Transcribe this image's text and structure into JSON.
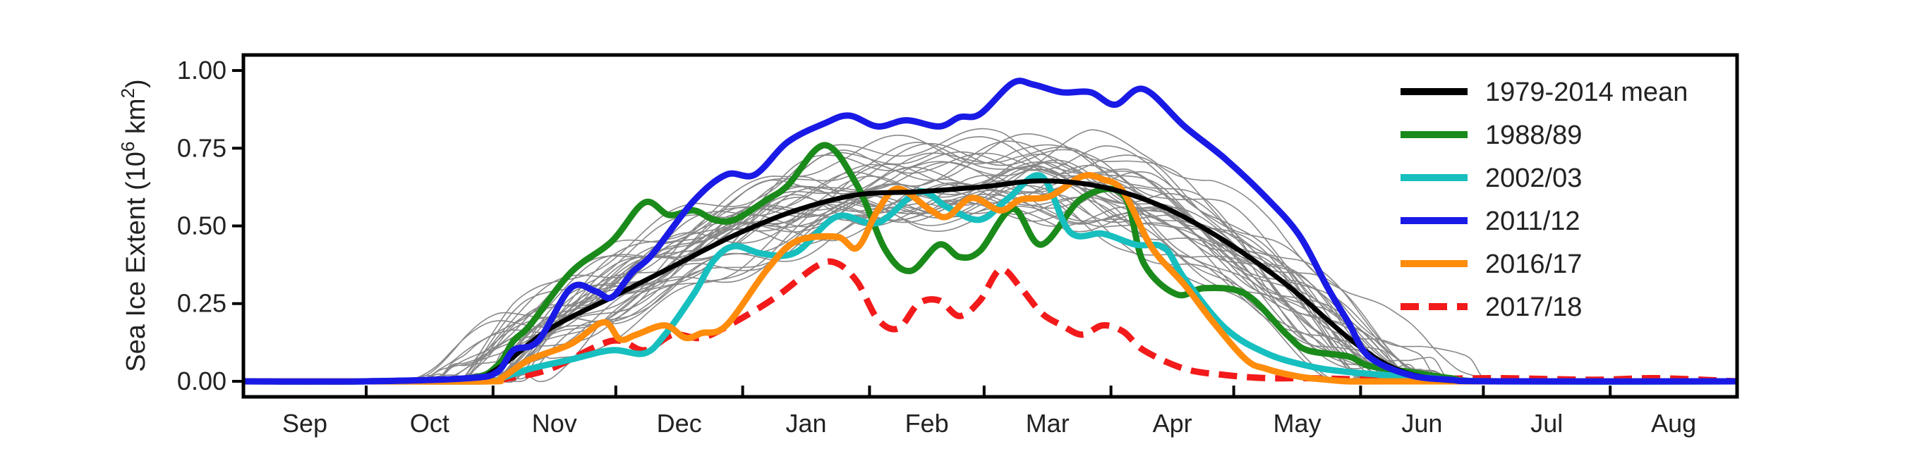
{
  "chart_data": {
    "type": "line",
    "ylabel": "Sea Ice Extent (10",
    "ylabel_exp": "6",
    "ylabel_unit": " km",
    "ylabel_unit_exp": "2",
    "ylabel_close": ")",
    "ylim": [
      -0.05,
      1.05
    ],
    "yticks": [
      "0.00",
      "0.25",
      "0.50",
      "0.75",
      "1.00"
    ],
    "ytick_values": [
      0,
      0.25,
      0.5,
      0.75,
      1.0
    ],
    "months": [
      "Sep",
      "Oct",
      "Nov",
      "Dec",
      "Jan",
      "Feb",
      "Mar",
      "Apr",
      "May",
      "Jun",
      "Jul",
      "Aug"
    ],
    "month_boundaries_day": [
      0,
      30,
      61,
      91,
      122,
      153,
      181,
      212,
      242,
      273,
      303,
      334,
      365
    ],
    "legend_position": "top-right",
    "grid": false,
    "background_series": {
      "description_visible": false,
      "color": "#888888",
      "count": 36
    },
    "series": [
      {
        "name": "1979-2014 mean",
        "color": "#000000",
        "style": "solid",
        "x": [
          0,
          30,
          55,
          62,
          75,
          90,
          105,
          120,
          135,
          150,
          165,
          180,
          195,
          210,
          225,
          240,
          255,
          270,
          280,
          290,
          305,
          365
        ],
        "y": [
          0,
          0,
          0.01,
          0.04,
          0.17,
          0.27,
          0.37,
          0.47,
          0.55,
          0.6,
          0.61,
          0.625,
          0.645,
          0.625,
          0.56,
          0.45,
          0.31,
          0.14,
          0.05,
          0.01,
          0,
          0
        ]
      },
      {
        "name": "1988/89",
        "color": "#1a8a1a",
        "style": "solid",
        "x": [
          0,
          30,
          55,
          62,
          66,
          70,
          80,
          90,
          98,
          104,
          110,
          115,
          120,
          128,
          133,
          142,
          150,
          157,
          163,
          170,
          175,
          180,
          188,
          195,
          205,
          215,
          220,
          228,
          235,
          245,
          255,
          260,
          270,
          275,
          285,
          295,
          305,
          365
        ],
        "y": [
          0,
          0,
          0.01,
          0.05,
          0.13,
          0.18,
          0.35,
          0.45,
          0.575,
          0.535,
          0.55,
          0.52,
          0.52,
          0.585,
          0.63,
          0.76,
          0.63,
          0.42,
          0.355,
          0.44,
          0.4,
          0.42,
          0.555,
          0.44,
          0.59,
          0.6,
          0.38,
          0.28,
          0.3,
          0.28,
          0.15,
          0.1,
          0.08,
          0.05,
          0.03,
          0.01,
          0,
          0
        ]
      },
      {
        "name": "2002/03",
        "color": "#17bfbf",
        "style": "solid",
        "x": [
          0,
          30,
          60,
          63,
          70,
          80,
          90,
          98,
          103,
          110,
          115,
          120,
          127,
          135,
          145,
          155,
          165,
          172,
          180,
          187,
          195,
          202,
          210,
          218,
          225,
          230,
          240,
          250,
          260,
          270,
          290,
          305,
          365
        ],
        "y": [
          0,
          0,
          0,
          0.01,
          0.04,
          0.07,
          0.1,
          0.09,
          0.15,
          0.28,
          0.39,
          0.435,
          0.41,
          0.415,
          0.53,
          0.51,
          0.61,
          0.56,
          0.52,
          0.59,
          0.66,
          0.48,
          0.475,
          0.44,
          0.43,
          0.33,
          0.17,
          0.09,
          0.05,
          0.03,
          0.01,
          0,
          0
        ]
      },
      {
        "name": "2011/12",
        "color": "#1a1ae6",
        "style": "solid",
        "x": [
          0,
          30,
          55,
          62,
          66,
          72,
          80,
          86,
          90,
          95,
          100,
          110,
          118,
          125,
          133,
          142,
          148,
          155,
          162,
          170,
          175,
          180,
          188,
          193,
          200,
          207,
          213,
          220,
          230,
          240,
          250,
          258,
          265,
          270,
          275,
          285,
          295,
          305,
          365
        ],
        "y": [
          0,
          0,
          0.01,
          0.03,
          0.1,
          0.13,
          0.3,
          0.29,
          0.27,
          0.35,
          0.41,
          0.58,
          0.665,
          0.665,
          0.77,
          0.83,
          0.855,
          0.82,
          0.84,
          0.82,
          0.85,
          0.86,
          0.96,
          0.955,
          0.93,
          0.93,
          0.89,
          0.94,
          0.82,
          0.715,
          0.59,
          0.47,
          0.3,
          0.19,
          0.08,
          0.02,
          0.005,
          0,
          0
        ]
      },
      {
        "name": "2016/17",
        "color": "#ff8c0a",
        "style": "solid",
        "x": [
          0,
          30,
          60,
          63,
          70,
          80,
          88,
          92,
          96,
          103,
          108,
          112,
          118,
          128,
          135,
          145,
          150,
          155,
          160,
          168,
          172,
          178,
          185,
          190,
          197,
          205,
          210,
          215,
          222,
          230,
          237,
          245,
          250,
          258,
          265,
          270,
          280,
          290,
          305,
          365
        ],
        "y": [
          0,
          0,
          0,
          0.01,
          0.07,
          0.12,
          0.19,
          0.135,
          0.15,
          0.18,
          0.14,
          0.155,
          0.18,
          0.36,
          0.45,
          0.465,
          0.43,
          0.55,
          0.62,
          0.55,
          0.53,
          0.59,
          0.55,
          0.585,
          0.595,
          0.66,
          0.65,
          0.61,
          0.43,
          0.31,
          0.19,
          0.07,
          0.04,
          0.015,
          0.005,
          0,
          0,
          0,
          0,
          0
        ]
      },
      {
        "name": "2017/18",
        "color": "#f21a1a",
        "style": "dashed",
        "x": [
          0,
          30,
          60,
          65,
          75,
          90,
          98,
          105,
          112,
          120,
          130,
          140,
          145,
          150,
          155,
          160,
          165,
          170,
          175,
          180,
          185,
          190,
          195,
          200,
          205,
          210,
          215,
          220,
          230,
          240,
          250,
          260,
          280,
          305,
          330,
          345,
          365
        ],
        "y": [
          0,
          0,
          0.005,
          0.01,
          0.04,
          0.13,
          0.1,
          0.15,
          0.14,
          0.19,
          0.27,
          0.37,
          0.38,
          0.32,
          0.2,
          0.17,
          0.25,
          0.26,
          0.21,
          0.26,
          0.36,
          0.3,
          0.22,
          0.18,
          0.15,
          0.18,
          0.16,
          0.1,
          0.04,
          0.02,
          0.01,
          0.01,
          0.005,
          0.01,
          0.005,
          0.01,
          0
        ]
      }
    ]
  }
}
